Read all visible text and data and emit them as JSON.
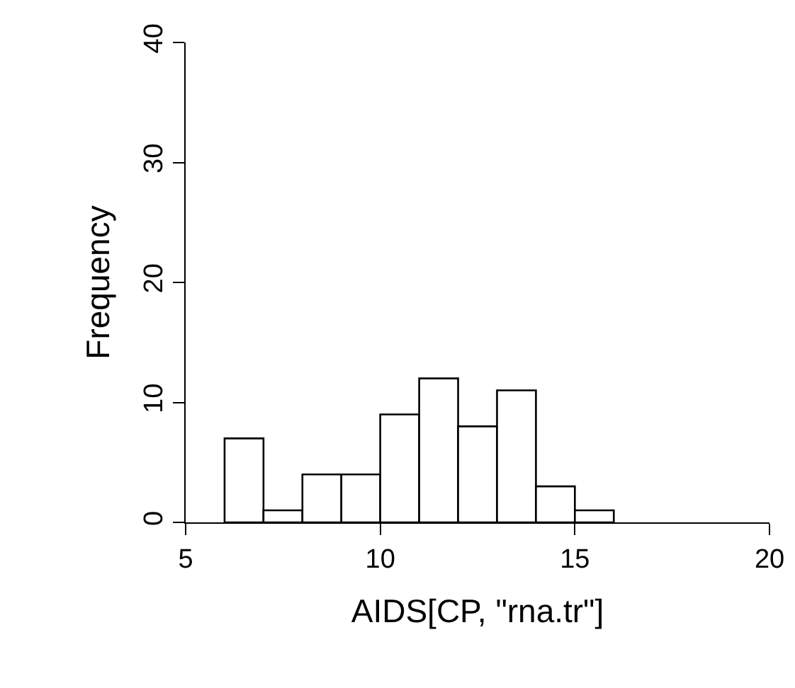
{
  "chart_data": {
    "type": "histogram",
    "xlabel": "AIDS[CP, \"rna.tr\"]",
    "ylabel": "Frequency",
    "bins": [
      6,
      7,
      8,
      9,
      10,
      11,
      12,
      13,
      14,
      15,
      16
    ],
    "values": [
      7,
      1,
      4,
      4,
      9,
      12,
      8,
      11,
      3,
      1
    ],
    "color": "#ffffff",
    "xlim": [
      5,
      20
    ],
    "xticks": [
      5,
      10,
      15,
      20
    ],
    "ylim": [
      0,
      40
    ],
    "yticks": [
      0,
      10,
      20,
      30,
      40
    ],
    "grid": false
  }
}
